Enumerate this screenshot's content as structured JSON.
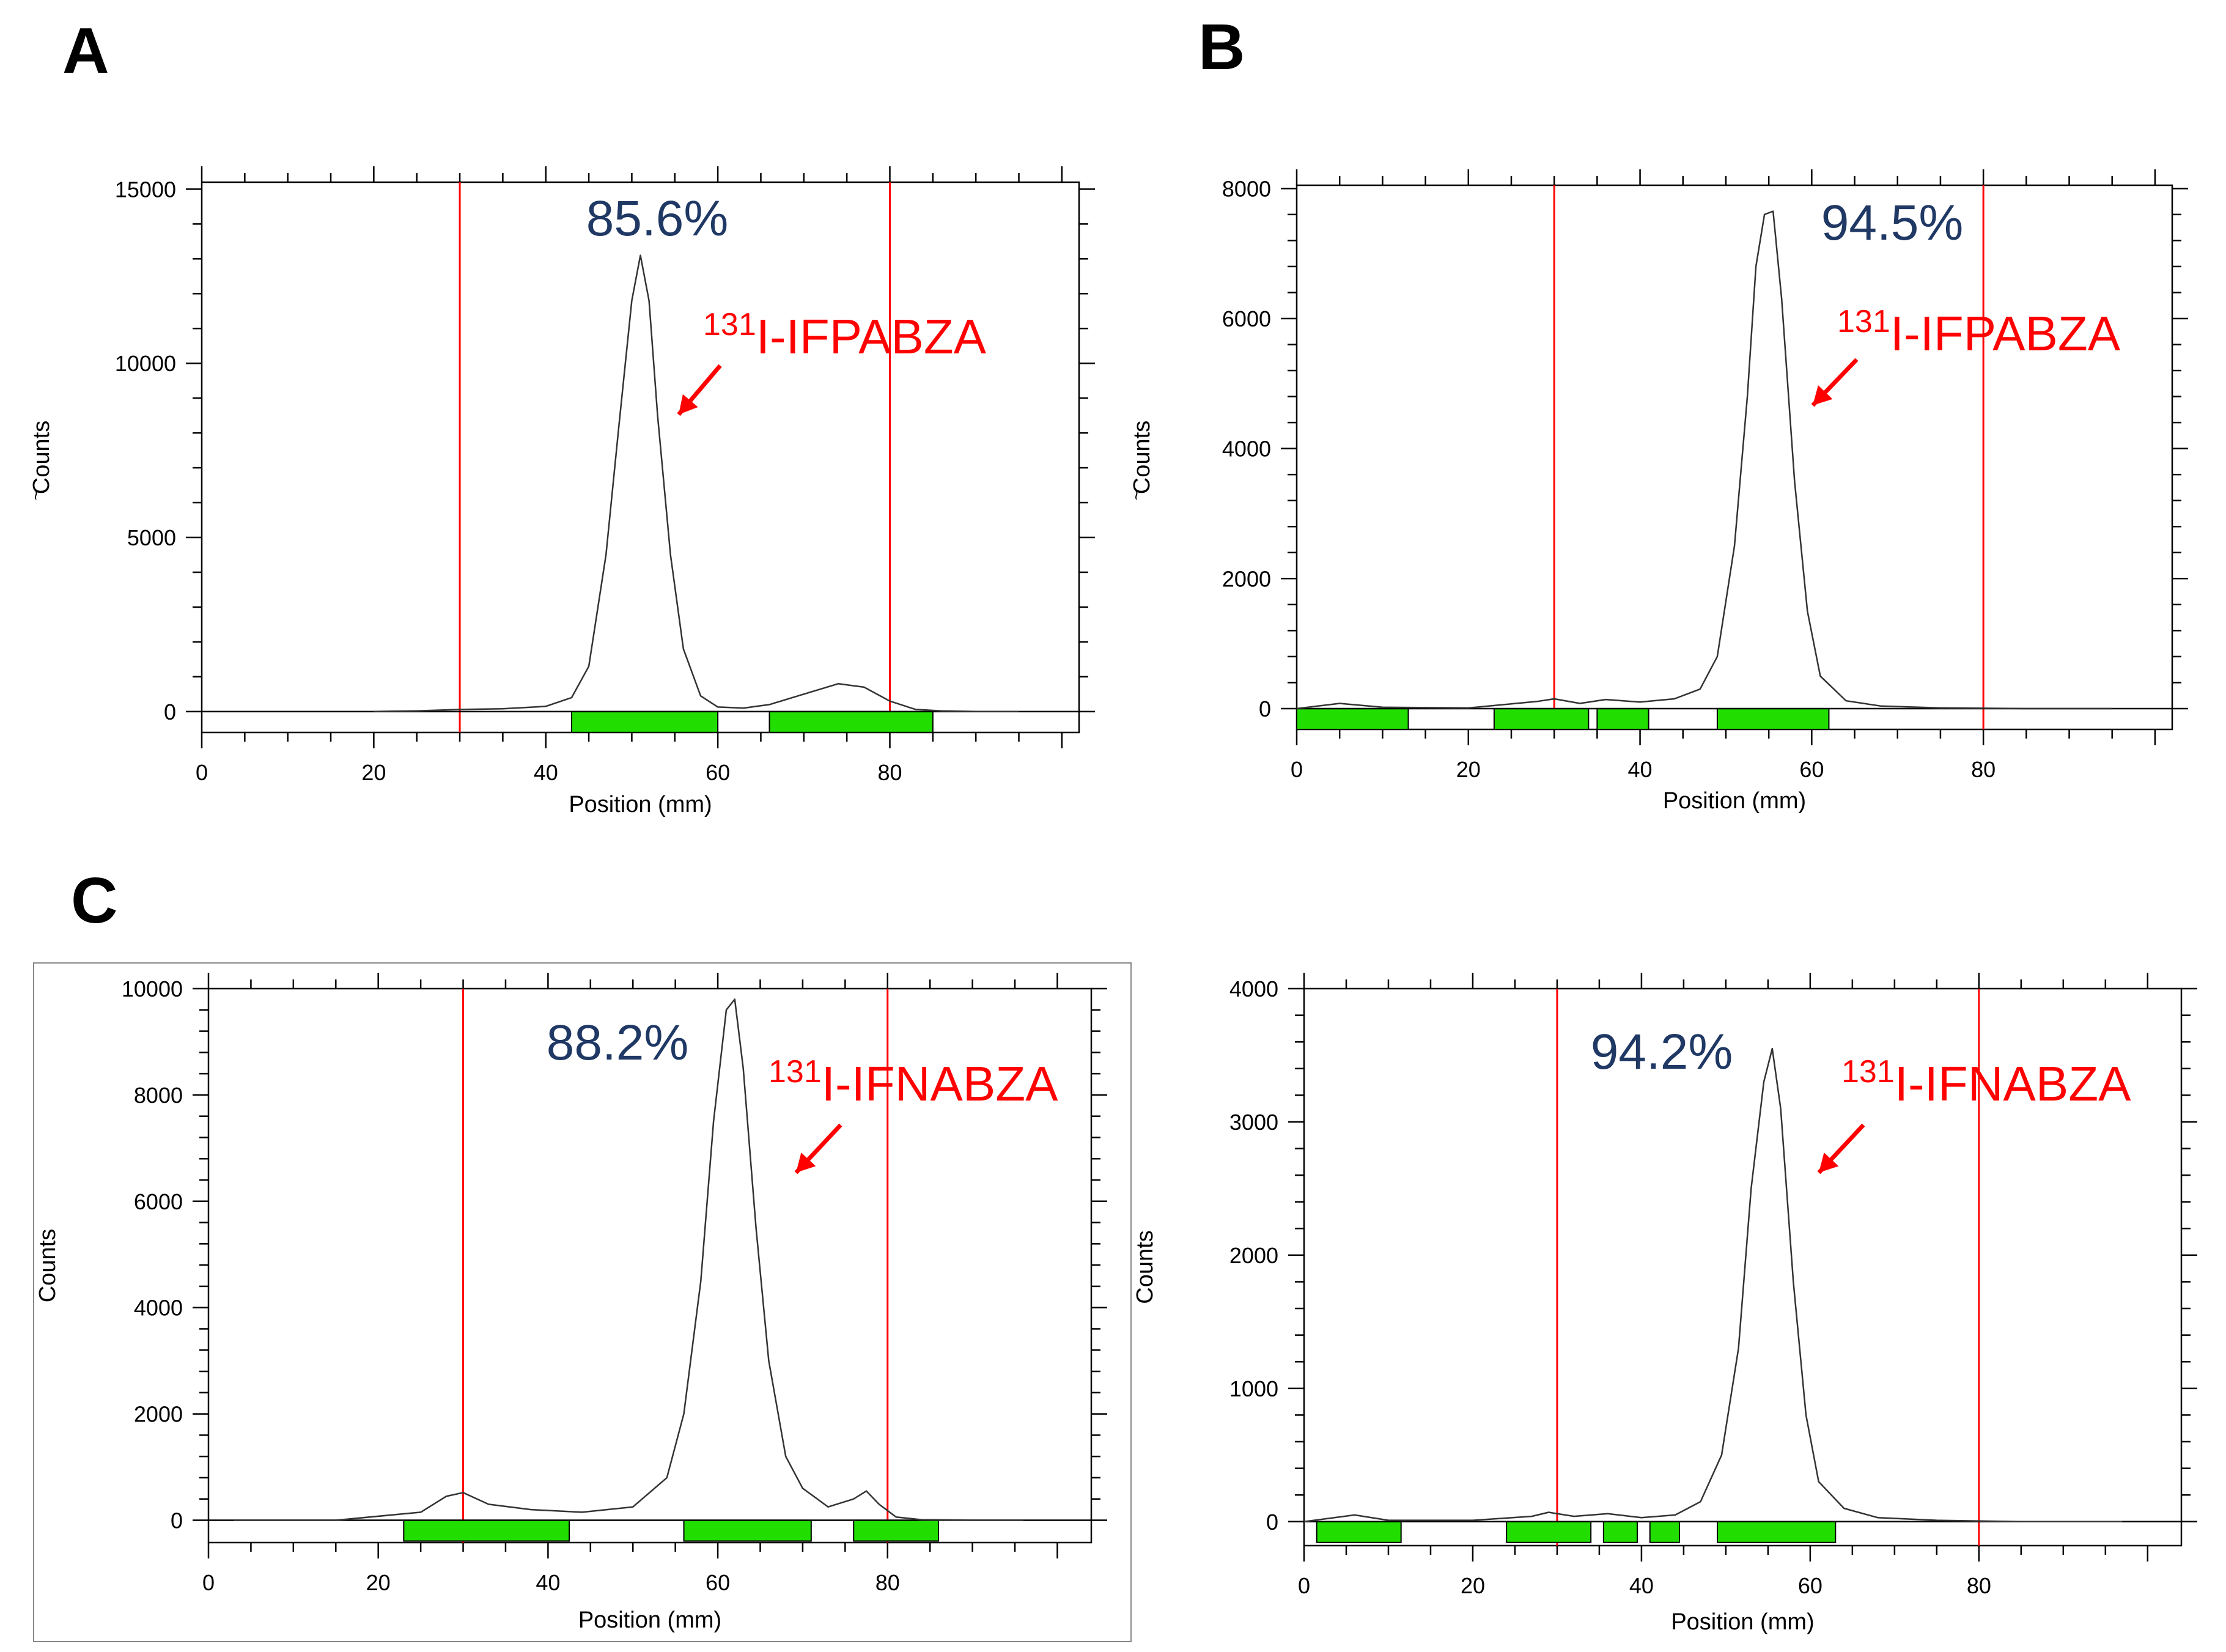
{
  "panel_letters": {
    "a": "A",
    "b": "B",
    "c": "C"
  },
  "colors": {
    "trace": "#333333",
    "region": "#ff0000",
    "peak_bar": "#22dd00",
    "percent": "#1f3864",
    "compound": "#ff0000",
    "arrow": "#ff0000",
    "axis": "#000000"
  },
  "chart_data": [
    {
      "id": "A",
      "type": "line",
      "title": "",
      "xlabel": "Position (mm)",
      "ylabel": "Counts",
      "ylabel_mark": "~",
      "xlim": [
        0,
        102
      ],
      "ylim": [
        -600,
        15200
      ],
      "xticks": [
        0,
        20,
        40,
        60,
        80
      ],
      "xtick_labels": [
        "0",
        "20",
        "40",
        "60",
        "80"
      ],
      "yticks": [
        0,
        5000,
        10000,
        15000
      ],
      "ytick_labels": [
        "0",
        "5000",
        "10000",
        "15000"
      ],
      "region_lines": [
        30,
        80
      ],
      "peak_bars": [
        [
          43,
          60
        ],
        [
          66,
          85
        ]
      ],
      "percent": "85.6%",
      "compound_sup": "131",
      "compound_name": "I-IFPABZA",
      "series": [
        {
          "name": "radio-TLC trace",
          "x": [
            20,
            25,
            30,
            35,
            40,
            43,
            45,
            47,
            48.5,
            50,
            51,
            52,
            53,
            54.5,
            56,
            58,
            60,
            63,
            66,
            70,
            74,
            77,
            80,
            83,
            86,
            90,
            95
          ],
          "y": [
            0,
            20,
            60,
            80,
            150,
            400,
            1300,
            4500,
            8200,
            11800,
            13100,
            11800,
            8500,
            4500,
            1800,
            450,
            130,
            100,
            200,
            500,
            800,
            700,
            300,
            60,
            20,
            0,
            0
          ]
        }
      ]
    },
    {
      "id": "B",
      "type": "line",
      "title": "",
      "xlabel": "Position (mm)",
      "ylabel": "Counts",
      "ylabel_mark": "~",
      "xlim": [
        0,
        102
      ],
      "ylim": [
        -320,
        8050
      ],
      "xticks": [
        0,
        20,
        40,
        60,
        80
      ],
      "xtick_labels": [
        "0",
        "20",
        "40",
        "60",
        "80"
      ],
      "yticks": [
        0,
        2000,
        4000,
        6000,
        8000
      ],
      "ytick_labels": [
        "0",
        "2000",
        "4000",
        "6000",
        "8000"
      ],
      "region_lines": [
        30,
        80
      ],
      "peak_bars": [
        [
          0,
          13
        ],
        [
          23,
          34
        ],
        [
          35,
          41
        ],
        [
          49,
          62
        ]
      ],
      "percent": "94.5%",
      "compound_sup": "131",
      "compound_name": "I-IFPABZA",
      "series": [
        {
          "name": "radio-TLC trace",
          "x": [
            0,
            5,
            10,
            20,
            28,
            30,
            33,
            36,
            40,
            44,
            47,
            49,
            51,
            52.5,
            53.5,
            54.5,
            55.5,
            56.5,
            58,
            59.5,
            61,
            64,
            68,
            75,
            85,
            95
          ],
          "y": [
            0,
            80,
            20,
            10,
            110,
            150,
            80,
            140,
            100,
            150,
            300,
            800,
            2500,
            4800,
            6800,
            7600,
            7650,
            6300,
            3500,
            1500,
            500,
            120,
            40,
            10,
            0,
            0
          ]
        }
      ]
    },
    {
      "id": "C",
      "type": "line",
      "title": "",
      "xlabel": "Position (mm)",
      "ylabel": "Counts",
      "ylabel_mark": "",
      "xlim": [
        0,
        104
      ],
      "ylim": [
        -420,
        10000
      ],
      "xticks": [
        0,
        20,
        40,
        60,
        80
      ],
      "xtick_labels": [
        "0",
        "20",
        "40",
        "60",
        "80"
      ],
      "yticks": [
        0,
        2000,
        4000,
        6000,
        8000,
        10000
      ],
      "ytick_labels": [
        "0",
        "2000",
        "4000",
        "6000",
        "8000",
        "10000"
      ],
      "region_lines": [
        30,
        80
      ],
      "peak_bars": [
        [
          23,
          42.5
        ],
        [
          56,
          71
        ],
        [
          76,
          86
        ]
      ],
      "percent": "88.2%",
      "compound_sup": "131",
      "compound_name": "I-IFNABZA",
      "series": [
        {
          "name": "radio-TLC trace",
          "x": [
            3,
            15,
            25,
            28,
            30,
            33,
            38,
            44,
            50,
            54,
            56,
            58,
            59.5,
            61,
            62,
            63,
            64.5,
            66,
            68,
            70,
            73,
            76,
            77.5,
            79,
            81,
            84,
            90,
            96
          ],
          "y": [
            0,
            0,
            150,
            450,
            520,
            300,
            200,
            150,
            250,
            800,
            2000,
            4500,
            7500,
            9600,
            9800,
            8500,
            5500,
            3000,
            1200,
            600,
            250,
            400,
            550,
            300,
            60,
            10,
            0,
            0
          ]
        }
      ]
    },
    {
      "id": "D",
      "type": "line",
      "title": "",
      "xlabel": "Position (mm)",
      "ylabel": "Counts",
      "ylabel_mark": "",
      "xlim": [
        0,
        104
      ],
      "ylim": [
        -180,
        4000
      ],
      "xticks": [
        0,
        20,
        40,
        60,
        80
      ],
      "xtick_labels": [
        "0",
        "20",
        "40",
        "60",
        "80"
      ],
      "yticks": [
        0,
        1000,
        2000,
        3000,
        4000
      ],
      "ytick_labels": [
        "0",
        "1000",
        "2000",
        "3000",
        "4000"
      ],
      "region_lines": [
        30,
        80
      ],
      "peak_bars": [
        [
          1.5,
          11.5
        ],
        [
          24,
          34
        ],
        [
          35.5,
          39.5
        ],
        [
          41,
          44.5
        ],
        [
          49,
          63
        ]
      ],
      "percent": "94.2%",
      "compound_sup": "131",
      "compound_name": "I-IFNABZA",
      "series": [
        {
          "name": "radio-TLC trace",
          "x": [
            0,
            6,
            10,
            20,
            27,
            29,
            32,
            36,
            40,
            44,
            47,
            49.5,
            51.5,
            53,
            54.5,
            55.5,
            56.5,
            58,
            59.5,
            61,
            64,
            68,
            75,
            85,
            97
          ],
          "y": [
            0,
            50,
            10,
            10,
            40,
            70,
            40,
            60,
            30,
            50,
            150,
            500,
            1300,
            2500,
            3300,
            3550,
            3100,
            1800,
            800,
            300,
            100,
            30,
            10,
            0,
            0
          ]
        }
      ]
    }
  ]
}
